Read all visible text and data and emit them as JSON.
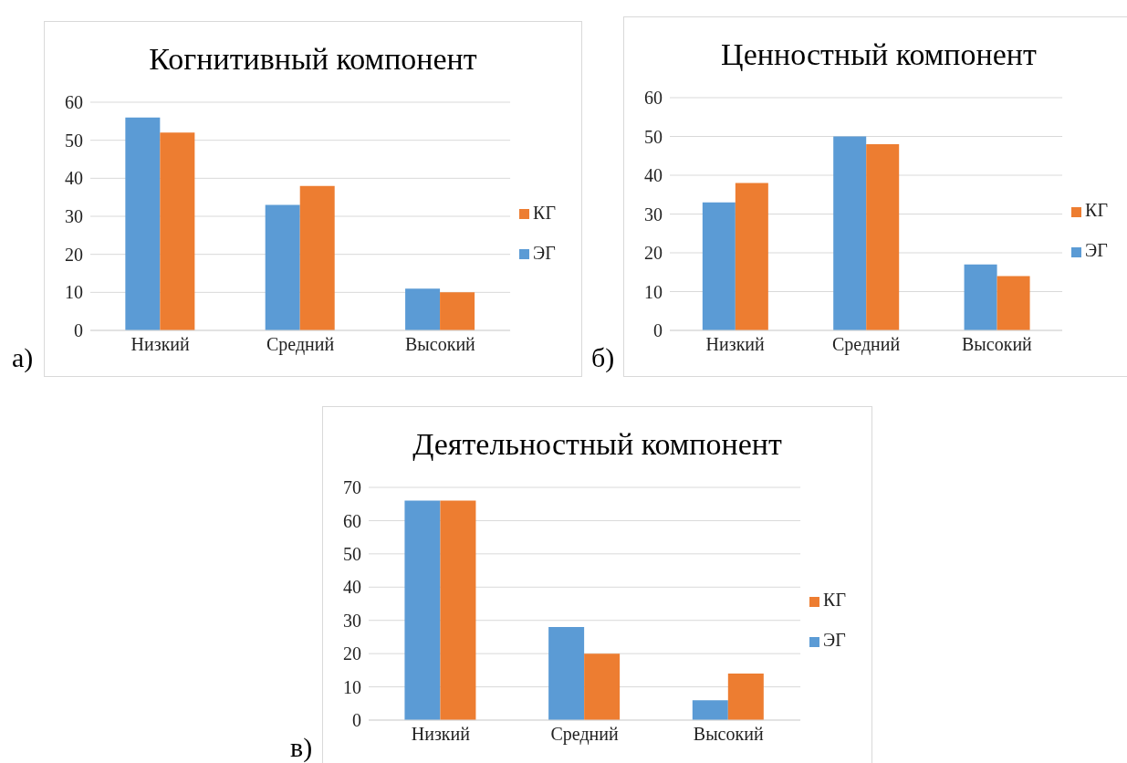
{
  "chart_data": [
    {
      "type": "bar",
      "title": "Когнитивный компонент",
      "categories": [
        "Низкий",
        "Средний",
        "Высокий"
      ],
      "series": [
        {
          "name": "ЭГ",
          "color": "#5b9bd5",
          "values": [
            56,
            33,
            11
          ]
        },
        {
          "name": "КГ",
          "color": "#ed7d31",
          "values": [
            52,
            38,
            10
          ]
        }
      ],
      "ylim": [
        0,
        60
      ],
      "yticks": [
        0,
        10,
        20,
        30,
        40,
        50,
        60
      ],
      "grid": "y",
      "legend": "right",
      "annotations": [
        "а)"
      ]
    },
    {
      "type": "bar",
      "title": "Ценностный компонент",
      "categories": [
        "Низкий",
        "Средний",
        "Высокий"
      ],
      "series": [
        {
          "name": "ЭГ",
          "color": "#5b9bd5",
          "values": [
            33,
            50,
            17
          ]
        },
        {
          "name": "КГ",
          "color": "#ed7d31",
          "values": [
            38,
            48,
            14
          ]
        }
      ],
      "ylim": [
        0,
        60
      ],
      "yticks": [
        0,
        10,
        20,
        30,
        40,
        50,
        60
      ],
      "grid": "y",
      "legend": "right",
      "annotations": [
        "б)"
      ]
    },
    {
      "type": "bar",
      "title": "Деятельностный компонент",
      "categories": [
        "Низкий",
        "Средний",
        "Высокий"
      ],
      "series": [
        {
          "name": "ЭГ",
          "color": "#5b9bd5",
          "values": [
            66,
            28,
            6
          ]
        },
        {
          "name": "КГ",
          "color": "#ed7d31",
          "values": [
            66,
            20,
            14
          ]
        }
      ],
      "ylim": [
        0,
        70
      ],
      "yticks": [
        0,
        10,
        20,
        30,
        40,
        50,
        60,
        70
      ],
      "grid": "y",
      "legend": "right",
      "annotations": [
        "в)"
      ]
    }
  ]
}
